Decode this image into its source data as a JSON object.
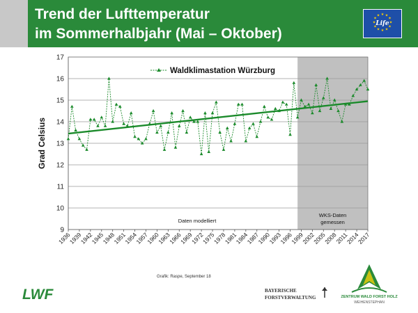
{
  "header": {
    "title_line1": "Trend der Lufttemperatur",
    "title_line2": "im Sommerhalbjahr (Mai – Oktober)",
    "eu_logo_text": "Life"
  },
  "chart_data": {
    "type": "line",
    "legend": "Waldklimastation Würzburg",
    "ylabel": "Grad Celsius",
    "xlabel": "",
    "ylim": [
      9,
      17
    ],
    "yticks": [
      9,
      10,
      11,
      12,
      13,
      14,
      15,
      16,
      17
    ],
    "xlim": [
      1936,
      2017
    ],
    "xticks": [
      1936,
      1939,
      1942,
      1945,
      1948,
      1951,
      1954,
      1957,
      1960,
      1963,
      1966,
      1969,
      1972,
      1975,
      1978,
      1981,
      1984,
      1987,
      1990,
      1993,
      1996,
      1999,
      2002,
      2005,
      2008,
      2011,
      2014,
      2017
    ],
    "grid": true,
    "series": [
      {
        "name": "Waldklimastation Würzburg",
        "x": [
          1936,
          1937,
          1938,
          1939,
          1940,
          1941,
          1942,
          1943,
          1944,
          1945,
          1946,
          1947,
          1948,
          1949,
          1950,
          1951,
          1952,
          1953,
          1954,
          1955,
          1956,
          1957,
          1958,
          1959,
          1960,
          1961,
          1962,
          1963,
          1964,
          1965,
          1966,
          1967,
          1968,
          1969,
          1970,
          1971,
          1972,
          1973,
          1974,
          1975,
          1976,
          1977,
          1978,
          1979,
          1980,
          1981,
          1982,
          1983,
          1984,
          1985,
          1986,
          1987,
          1988,
          1989,
          1990,
          1991,
          1992,
          1993,
          1994,
          1995,
          1996,
          1997,
          1998,
          1999,
          2000,
          2001,
          2002,
          2003,
          2004,
          2005,
          2006,
          2007,
          2008,
          2009,
          2010,
          2011,
          2012,
          2013,
          2014,
          2015,
          2016,
          2017
        ],
        "values": [
          13.2,
          14.7,
          13.6,
          13.2,
          12.9,
          12.7,
          14.1,
          14.1,
          13.8,
          14.2,
          13.8,
          16.0,
          14.0,
          14.8,
          14.7,
          13.9,
          13.8,
          14.4,
          13.3,
          13.2,
          13.0,
          13.2,
          13.9,
          14.5,
          13.5,
          13.8,
          12.7,
          13.5,
          14.4,
          12.8,
          13.8,
          14.5,
          13.5,
          14.2,
          14.0,
          14.0,
          12.5,
          14.4,
          12.6,
          14.4,
          14.9,
          13.5,
          12.7,
          13.7,
          13.1,
          13.9,
          14.8,
          14.8,
          13.1,
          13.7,
          13.9,
          13.3,
          14.0,
          14.7,
          14.2,
          14.1,
          14.6,
          14.5,
          14.9,
          14.8,
          13.4,
          15.8,
          14.2,
          15.0,
          14.7,
          14.8,
          14.4,
          15.7,
          14.5,
          15.1,
          16.0,
          14.6,
          15.0,
          14.5,
          14.0,
          14.8,
          14.8,
          15.2,
          15.5,
          15.7,
          15.9,
          15.5
        ]
      }
    ],
    "trend": {
      "start": 13.45,
      "end": 14.95
    },
    "measured_start_year": 1998,
    "annotations": {
      "modelled": "Daten modelliert",
      "measured_line1": "WKS-Daten",
      "measured_line2": "gemessen"
    },
    "colors": {
      "line": "#1a8a2a",
      "trend": "#1a8a2a",
      "shade": "#c0c0c0"
    }
  },
  "footer": {
    "credit": "Grafik: Raspe, September 18",
    "lwf_logo": "LWF",
    "bayern_line1": "BAYERISCHE",
    "bayern_line2": "FORSTVERWALTUNG",
    "zentrum_line1": "ZENTRUM WALD FORST HOLZ",
    "zentrum_line2": "WEIHENSTEPHAN"
  }
}
